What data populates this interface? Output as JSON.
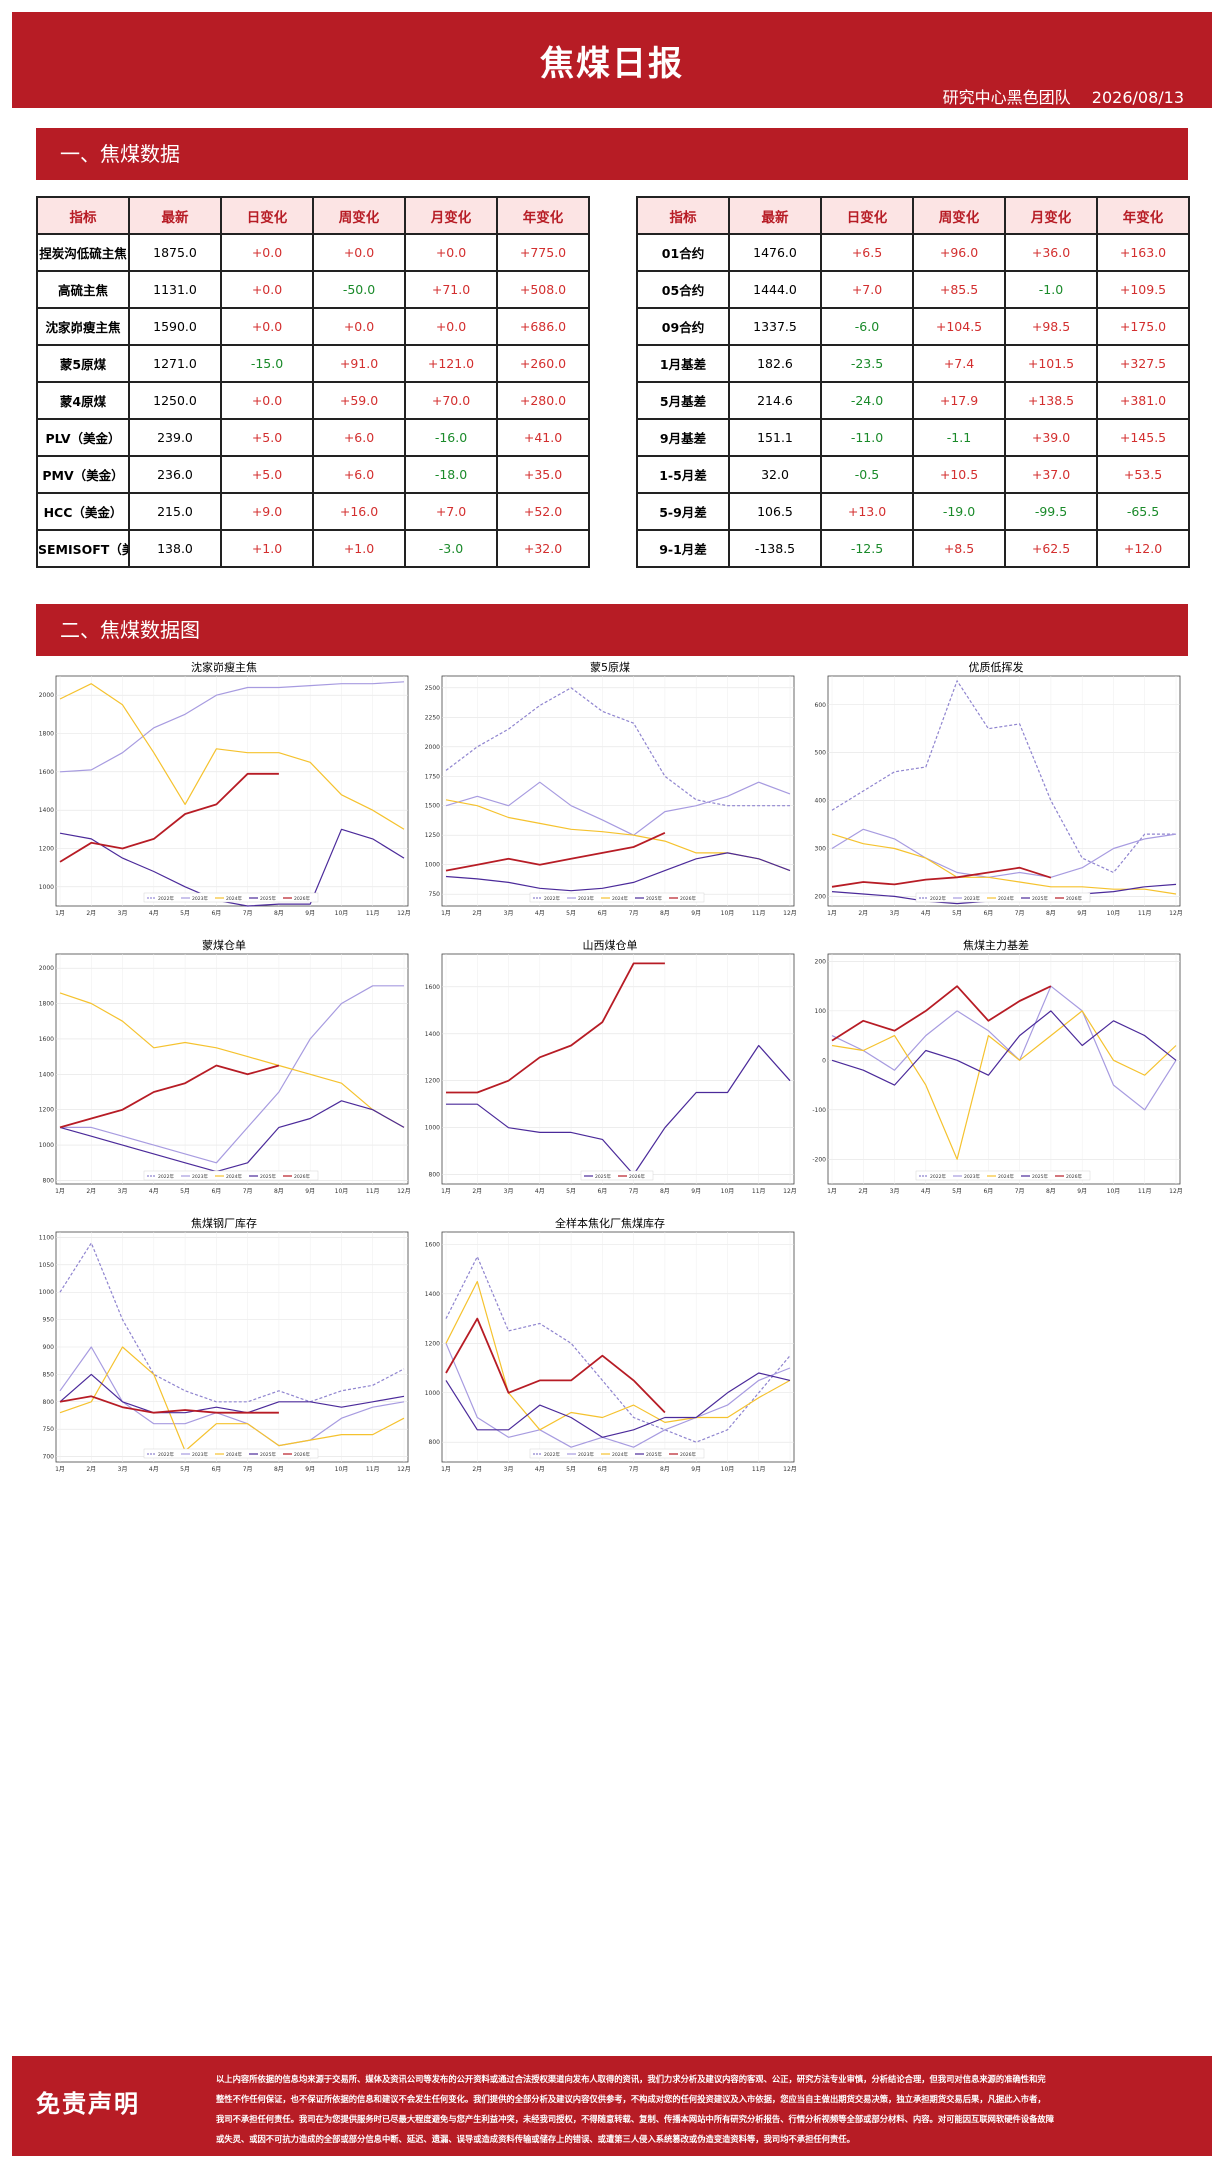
{
  "header": {
    "title": "焦煤日报",
    "team": "研究中心黑色团队",
    "date": "2026/08/13"
  },
  "section1": {
    "title": "一、焦煤数据"
  },
  "section2": {
    "title": "二、焦煤数据图"
  },
  "table_columns": [
    "指标",
    "最新",
    "日变化",
    "周变化",
    "月变化",
    "年变化"
  ],
  "table_left": [
    [
      "捏炭沟低硫主焦",
      "1875.0",
      "+0.0",
      "+0.0",
      "+0.0",
      "+775.0"
    ],
    [
      "高硫主焦",
      "1131.0",
      "+0.0",
      "-50.0",
      "+71.0",
      "+508.0"
    ],
    [
      "沈家峁瘦主焦",
      "1590.0",
      "+0.0",
      "+0.0",
      "+0.0",
      "+686.0"
    ],
    [
      "蒙5原煤",
      "1271.0",
      "-15.0",
      "+91.0",
      "+121.0",
      "+260.0"
    ],
    [
      "蒙4原煤",
      "1250.0",
      "+0.0",
      "+59.0",
      "+70.0",
      "+280.0"
    ],
    [
      "PLV（美金）",
      "239.0",
      "+5.0",
      "+6.0",
      "-16.0",
      "+41.0"
    ],
    [
      "PMV（美金）",
      "236.0",
      "+5.0",
      "+6.0",
      "-18.0",
      "+35.0"
    ],
    [
      "HCC（美金）",
      "215.0",
      "+9.0",
      "+16.0",
      "+7.0",
      "+52.0"
    ],
    [
      "SEMISOFT（美金）",
      "138.0",
      "+1.0",
      "+1.0",
      "-3.0",
      "+32.0"
    ]
  ],
  "table_right": [
    [
      "01合约",
      "1476.0",
      "+6.5",
      "+96.0",
      "+36.0",
      "+163.0"
    ],
    [
      "05合约",
      "1444.0",
      "+7.0",
      "+85.5",
      "-1.0",
      "+109.5"
    ],
    [
      "09合约",
      "1337.5",
      "-6.0",
      "+104.5",
      "+98.5",
      "+175.0"
    ],
    [
      "1月基差",
      "182.6",
      "-23.5",
      "+7.4",
      "+101.5",
      "+327.5"
    ],
    [
      "5月基差",
      "214.6",
      "-24.0",
      "+17.9",
      "+138.5",
      "+381.0"
    ],
    [
      "9月基差",
      "151.1",
      "-11.0",
      "-1.1",
      "+39.0",
      "+145.5"
    ],
    [
      "1-5月差",
      "32.0",
      "-0.5",
      "+10.5",
      "+37.0",
      "+53.5"
    ],
    [
      "5-9月差",
      "106.5",
      "+13.0",
      "-19.0",
      "-99.5",
      "-65.5"
    ],
    [
      "9-1月差",
      "-138.5",
      "-12.5",
      "+8.5",
      "+62.5",
      "+12.0"
    ]
  ],
  "colors": {
    "brand": "#b71c25",
    "header_bg": "#fce4e4",
    "up": "#d32f2f",
    "down": "#1a8a2a"
  },
  "chart_data": [
    {
      "type": "line",
      "title": "沈家峁瘦主焦",
      "x_ticks": [
        "1月",
        "2月",
        "3月",
        "4月",
        "5月",
        "6月",
        "7月",
        "8月",
        "9月",
        "10月",
        "11月",
        "12月"
      ],
      "y_ticks": [
        1000,
        1200,
        1400,
        1600,
        1800,
        2000
      ],
      "ylim": [
        900,
        2100
      ],
      "series": [
        {
          "name": "2022年",
          "color": "#9b8fd9",
          "dash": true,
          "values": []
        },
        {
          "name": "2023年",
          "color": "#a79be0",
          "dash": false,
          "values": [
            1600,
            1610,
            1700,
            1830,
            1900,
            2000,
            2040,
            2040,
            2050,
            2060,
            2060,
            2070
          ]
        },
        {
          "name": "2024年",
          "color": "#f5c22e",
          "dash": false,
          "values": [
            1980,
            2060,
            1950,
            1700,
            1430,
            1720,
            1700,
            1700,
            1650,
            1480,
            1400,
            1300
          ]
        },
        {
          "name": "2025年",
          "color": "#4b2a9a",
          "dash": false,
          "values": [
            1280,
            1250,
            1150,
            1080,
            1000,
            930,
            900,
            910,
            910,
            1300,
            1250,
            1150
          ]
        },
        {
          "name": "2026年",
          "color": "#b71c25",
          "dash": false,
          "values": [
            1130,
            1230,
            1200,
            1250,
            1380,
            1430,
            1590,
            1590
          ]
        }
      ]
    },
    {
      "type": "line",
      "title": "蒙5原煤",
      "x_ticks": [
        "1月",
        "2月",
        "3月",
        "4月",
        "5月",
        "6月",
        "7月",
        "8月",
        "9月",
        "10月",
        "11月",
        "12月"
      ],
      "y_ticks": [
        750,
        1000,
        1250,
        1500,
        1750,
        2000,
        2250,
        2500
      ],
      "ylim": [
        650,
        2600
      ],
      "series": [
        {
          "name": "2022年",
          "color": "#8f84cf",
          "dash": true,
          "values": [
            1800,
            2000,
            2150,
            2350,
            2500,
            2300,
            2200,
            1750,
            1550,
            1500,
            1500,
            1500
          ]
        },
        {
          "name": "2023年",
          "color": "#a79be0",
          "dash": false,
          "values": [
            1500,
            1580,
            1500,
            1700,
            1500,
            1380,
            1250,
            1450,
            1500,
            1580,
            1700,
            1600
          ]
        },
        {
          "name": "2024年",
          "color": "#f5c22e",
          "dash": false,
          "values": [
            1550,
            1500,
            1400,
            1350,
            1300,
            1280,
            1250,
            1200,
            1100,
            1100,
            1050,
            950
          ]
        },
        {
          "name": "2025年",
          "color": "#4b2a9a",
          "dash": false,
          "values": [
            900,
            880,
            850,
            800,
            780,
            800,
            850,
            950,
            1050,
            1100,
            1050,
            950
          ]
        },
        {
          "name": "2026年",
          "color": "#b71c25",
          "dash": false,
          "values": [
            950,
            1000,
            1050,
            1000,
            1050,
            1100,
            1150,
            1271
          ]
        }
      ]
    },
    {
      "type": "line",
      "title": "优质低挥发",
      "x_ticks": [
        "1月",
        "2月",
        "3月",
        "4月",
        "5月",
        "6月",
        "7月",
        "8月",
        "9月",
        "10月",
        "11月",
        "12月"
      ],
      "y_ticks": [
        200,
        300,
        400,
        500,
        600
      ],
      "ylim": [
        180,
        660
      ],
      "series": [
        {
          "name": "2022年",
          "color": "#8f84cf",
          "dash": true,
          "values": [
            380,
            420,
            460,
            470,
            650,
            550,
            560,
            400,
            280,
            250,
            330,
            330
          ]
        },
        {
          "name": "2023年",
          "color": "#a79be0",
          "dash": false,
          "values": [
            300,
            340,
            320,
            280,
            250,
            240,
            250,
            240,
            260,
            300,
            320,
            330
          ]
        },
        {
          "name": "2024年",
          "color": "#f5c22e",
          "dash": false,
          "values": [
            330,
            310,
            300,
            280,
            240,
            240,
            230,
            220,
            220,
            215,
            215,
            205
          ]
        },
        {
          "name": "2025年",
          "color": "#4b2a9a",
          "dash": false,
          "values": [
            210,
            205,
            200,
            190,
            185,
            190,
            200,
            200,
            205,
            210,
            220,
            225
          ]
        },
        {
          "name": "2026年",
          "color": "#b71c25",
          "dash": false,
          "values": [
            220,
            230,
            225,
            235,
            240,
            250,
            260,
            239
          ]
        }
      ]
    },
    {
      "type": "line",
      "title": "蒙煤仓单",
      "x_ticks": [
        "1月",
        "2月",
        "3月",
        "4月",
        "5月",
        "6月",
        "7月",
        "8月",
        "9月",
        "10月",
        "11月",
        "12月"
      ],
      "y_ticks": [
        800,
        1000,
        1200,
        1400,
        1600,
        1800,
        2000
      ],
      "ylim": [
        780,
        2080
      ],
      "series": [
        {
          "name": "2022年",
          "color": "#8f84cf",
          "dash": true,
          "values": []
        },
        {
          "name": "2023年",
          "color": "#a79be0",
          "dash": false,
          "values": [
            1100,
            1100,
            1050,
            1000,
            950,
            900,
            1100,
            1300,
            1600,
            1800,
            1900,
            1900
          ]
        },
        {
          "name": "2024年",
          "color": "#f5c22e",
          "dash": false,
          "values": [
            1860,
            1800,
            1700,
            1550,
            1580,
            1550,
            1500,
            1450,
            1400,
            1350,
            1200,
            1100
          ]
        },
        {
          "name": "2025年",
          "color": "#4b2a9a",
          "dash": false,
          "values": [
            1100,
            1050,
            1000,
            950,
            900,
            850,
            900,
            1100,
            1150,
            1250,
            1200,
            1100
          ]
        },
        {
          "name": "2026年",
          "color": "#b71c25",
          "dash": false,
          "values": [
            1100,
            1150,
            1200,
            1300,
            1350,
            1450,
            1400,
            1450
          ]
        }
      ]
    },
    {
      "type": "line",
      "title": "山西煤仓单",
      "x_ticks": [
        "1月",
        "2月",
        "3月",
        "4月",
        "5月",
        "6月",
        "7月",
        "8月",
        "9月",
        "10月",
        "11月",
        "12月"
      ],
      "y_ticks": [
        800,
        1000,
        1200,
        1400,
        1600
      ],
      "ylim": [
        760,
        1740
      ],
      "series": [
        {
          "name": "2025年",
          "color": "#4b2a9a",
          "dash": false,
          "values": [
            1100,
            1100,
            1000,
            980,
            980,
            950,
            800,
            1000,
            1150,
            1150,
            1350,
            1200
          ]
        },
        {
          "name": "2026年",
          "color": "#b71c25",
          "dash": false,
          "values": [
            1150,
            1150,
            1200,
            1300,
            1350,
            1450,
            1700,
            1700
          ]
        }
      ]
    },
    {
      "type": "line",
      "title": "焦煤主力基差",
      "x_ticks": [
        "1月",
        "2月",
        "3月",
        "4月",
        "5月",
        "6月",
        "7月",
        "8月",
        "9月",
        "10月",
        "11月",
        "12月"
      ],
      "y_ticks": [
        -200,
        -100,
        0,
        100,
        200
      ],
      "ylim": [
        -250,
        215
      ],
      "series": [
        {
          "name": "2022年",
          "color": "#8f84cf",
          "dash": true,
          "values": []
        },
        {
          "name": "2023年",
          "color": "#a79be0",
          "dash": false,
          "values": [
            50,
            20,
            -20,
            50,
            100,
            60,
            0,
            150,
            100,
            -50,
            -100,
            0
          ]
        },
        {
          "name": "2024年",
          "color": "#f5c22e",
          "dash": false,
          "values": [
            30,
            20,
            50,
            -50,
            -200,
            50,
            0,
            50,
            100,
            0,
            -30,
            30
          ]
        },
        {
          "name": "2025年",
          "color": "#4b2a9a",
          "dash": false,
          "values": [
            0,
            -20,
            -50,
            20,
            0,
            -30,
            50,
            100,
            30,
            80,
            50,
            0
          ]
        },
        {
          "name": "2026年",
          "color": "#b71c25",
          "dash": false,
          "values": [
            40,
            80,
            60,
            100,
            150,
            80,
            120,
            150
          ]
        }
      ]
    },
    {
      "type": "line",
      "title": "焦煤钢厂库存",
      "x_ticks": [
        "1月",
        "2月",
        "3月",
        "4月",
        "5月",
        "6月",
        "7月",
        "8月",
        "9月",
        "10月",
        "11月",
        "12月"
      ],
      "y_ticks": [
        700,
        750,
        800,
        850,
        900,
        950,
        1000,
        1050,
        1100
      ],
      "ylim": [
        690,
        1110
      ],
      "series": [
        {
          "name": "2022年",
          "color": "#8f84cf",
          "dash": true,
          "values": [
            1000,
            1090,
            950,
            850,
            820,
            800,
            800,
            820,
            800,
            820,
            830,
            860
          ]
        },
        {
          "name": "2023年",
          "color": "#a79be0",
          "dash": false,
          "values": [
            820,
            900,
            800,
            760,
            760,
            780,
            760,
            720,
            730,
            770,
            790,
            800
          ]
        },
        {
          "name": "2024年",
          "color": "#f5c22e",
          "dash": false,
          "values": [
            780,
            800,
            900,
            850,
            710,
            760,
            760,
            720,
            730,
            740,
            740,
            770
          ]
        },
        {
          "name": "2025年",
          "color": "#4b2a9a",
          "dash": false,
          "values": [
            800,
            850,
            800,
            780,
            780,
            790,
            780,
            800,
            800,
            790,
            800,
            810
          ]
        },
        {
          "name": "2026年",
          "color": "#b71c25",
          "dash": false,
          "values": [
            800,
            810,
            790,
            780,
            785,
            780,
            780,
            780
          ]
        }
      ]
    },
    {
      "type": "line",
      "title": "全样本焦化厂焦煤库存",
      "x_ticks": [
        "1月",
        "2月",
        "3月",
        "4月",
        "5月",
        "6月",
        "7月",
        "8月",
        "9月",
        "10月",
        "11月",
        "12月"
      ],
      "y_ticks": [
        800,
        1000,
        1200,
        1400,
        1600
      ],
      "ylim": [
        720,
        1650
      ],
      "series": [
        {
          "name": "2022年",
          "color": "#8f84cf",
          "dash": true,
          "values": [
            1300,
            1550,
            1250,
            1280,
            1200,
            1050,
            900,
            850,
            800,
            850,
            1000,
            1150
          ]
        },
        {
          "name": "2023年",
          "color": "#a79be0",
          "dash": false,
          "values": [
            1200,
            900,
            820,
            850,
            780,
            820,
            780,
            850,
            900,
            950,
            1050,
            1100
          ]
        },
        {
          "name": "2024年",
          "color": "#f5c22e",
          "dash": false,
          "values": [
            1200,
            1450,
            1000,
            850,
            920,
            900,
            950,
            880,
            900,
            900,
            980,
            1050
          ]
        },
        {
          "name": "2025年",
          "color": "#4b2a9a",
          "dash": false,
          "values": [
            1050,
            850,
            850,
            950,
            900,
            820,
            850,
            900,
            900,
            1000,
            1080,
            1050
          ]
        },
        {
          "name": "2026年",
          "color": "#b71c25",
          "dash": false,
          "values": [
            1080,
            1300,
            1000,
            1050,
            1050,
            1150,
            1050,
            920
          ]
        }
      ]
    }
  ],
  "disclaimer": {
    "title": "免责声明",
    "lines": [
      "以上内容所依据的信息均来源于交易所、媒体及资讯公司等发布的公开资料或通过合法授权渠道向发布人取得的资讯，我们力求分析及建议内容的客观、公正，研究方法专业审慎，分析结论合理，但我司对信息来源的准确性和完",
      "整性不作任何保证，也不保证所依据的信息和建议不会发生任何变化。我们提供的全部分析及建议内容仅供参考，不构成对您的任何投资建议及入市依据，您应当自主做出期货交易决策，独立承担期货交易后果，凡据此入市者，",
      "我司不承担任何责任。我司在为您提供服务时已尽最大程度避免与您产生利益冲突，未经我司授权，不得随意转载、复制、传播本网站中所有研究分析报告、行情分析视频等全部或部分材料、内容。对可能因互联网软硬件设备故障",
      "或失灵、或因不可抗力造成的全部或部分信息中断、延迟、遗漏、误导或造成资料传输或储存上的错误、或遭第三人侵入系统篡改或伪造变造资料等，我司均不承担任何责任。"
    ]
  }
}
